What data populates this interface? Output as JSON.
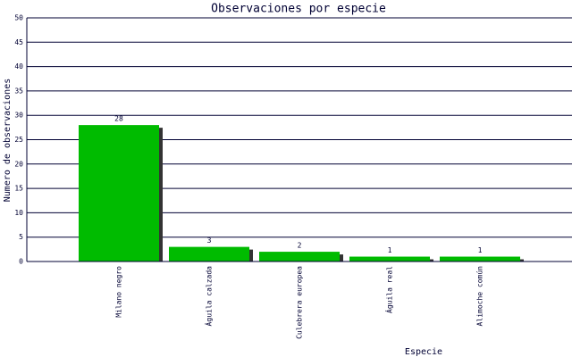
{
  "chart_data": {
    "type": "bar",
    "title": "Observaciones por especie",
    "x_label": "Especie",
    "y_label": "Numero de observaciones",
    "categories": [
      "Milano negro",
      "Águila calzada",
      "Culebrera europea",
      "Águila real",
      "Alimoche común"
    ],
    "values": [
      28,
      3,
      2,
      1,
      1
    ],
    "color": "#00bb00",
    "ylim": [
      0,
      50
    ],
    "yticks": [
      0,
      5,
      10,
      15,
      20,
      25,
      30,
      35,
      40,
      45,
      50
    ],
    "grid": true
  }
}
